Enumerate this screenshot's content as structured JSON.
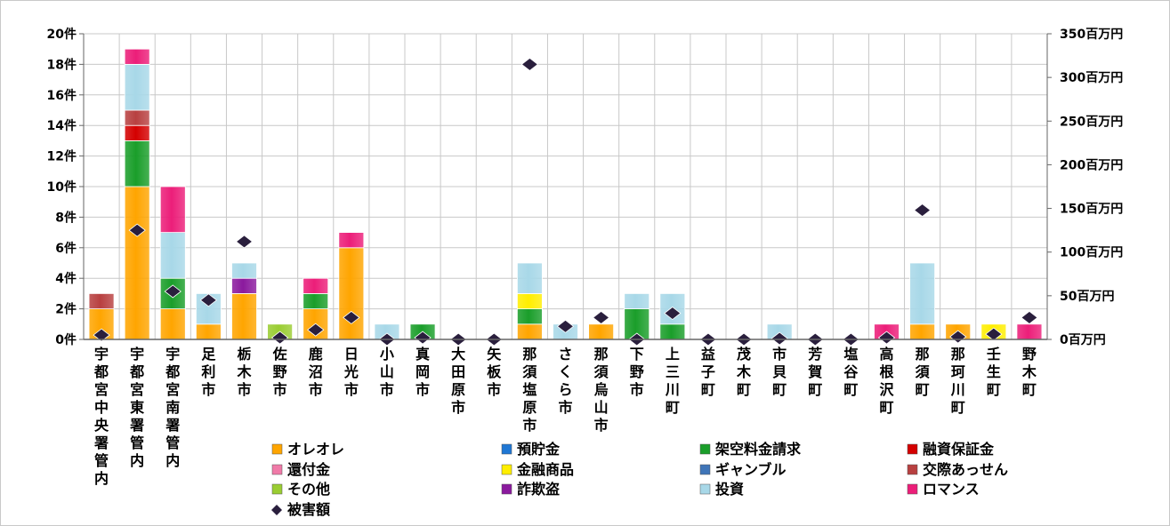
{
  "chart_data": {
    "type": "bar",
    "stacked": true,
    "categories": [
      "宇都宮中央署管内",
      "宇都宮東署管内",
      "宇都宮南署管内",
      "足利市",
      "栃木市",
      "佐野市",
      "鹿沼市",
      "日光市",
      "小山市",
      "真岡市",
      "大田原市",
      "矢板市",
      "那須塩原市",
      "さくら市",
      "那須烏山市",
      "下野市",
      "上三川町",
      "益子町",
      "茂木町",
      "市貝町",
      "芳賀町",
      "塩谷町",
      "高根沢町",
      "那須町",
      "那珂川町",
      "壬生町",
      "野木町"
    ],
    "y_ticks": [
      "0件",
      "2件",
      "4件",
      "6件",
      "8件",
      "10件",
      "12件",
      "14件",
      "16件",
      "18件",
      "20件"
    ],
    "y2_ticks": [
      "0百万円",
      "50百万円",
      "100百万円",
      "150百万円",
      "200百万円",
      "250百万円",
      "300百万円",
      "350百万円"
    ],
    "ylim": [
      0,
      20
    ],
    "y2lim": [
      0,
      350
    ],
    "legend_position": "bottom",
    "series": [
      {
        "name": "オレオレ",
        "color": "#ffa500",
        "values": [
          2,
          10,
          2,
          1,
          3,
          0,
          2,
          6,
          0,
          0,
          0,
          0,
          1,
          0,
          1,
          0,
          0,
          0,
          0,
          0,
          0,
          0,
          0,
          1,
          1,
          0,
          0
        ]
      },
      {
        "name": "預貯金",
        "color": "#1f77d4",
        "values": [
          0,
          0,
          0,
          0,
          0,
          0,
          0,
          0,
          0,
          0,
          0,
          0,
          0,
          0,
          0,
          0,
          0,
          0,
          0,
          0,
          0,
          0,
          0,
          0,
          0,
          0,
          0
        ]
      },
      {
        "name": "架空料金請求",
        "color": "#1a9e2a",
        "values": [
          0,
          3,
          2,
          0,
          0,
          0,
          1,
          0,
          0,
          1,
          0,
          0,
          1,
          0,
          0,
          2,
          1,
          0,
          0,
          0,
          0,
          0,
          0,
          0,
          0,
          0,
          0
        ]
      },
      {
        "name": "融資保証金",
        "color": "#d40000",
        "values": [
          0,
          1,
          0,
          0,
          0,
          0,
          0,
          0,
          0,
          0,
          0,
          0,
          0,
          0,
          0,
          0,
          0,
          0,
          0,
          0,
          0,
          0,
          0,
          0,
          0,
          0,
          0
        ]
      },
      {
        "name": "還付金",
        "color": "#f07aa8",
        "values": [
          0,
          0,
          0,
          0,
          0,
          0,
          0,
          0,
          0,
          0,
          0,
          0,
          0,
          0,
          0,
          0,
          0,
          0,
          0,
          0,
          0,
          0,
          0,
          0,
          0,
          0,
          0
        ]
      },
      {
        "name": "金融商品",
        "color": "#ffee00",
        "values": [
          0,
          0,
          0,
          0,
          0,
          0,
          0,
          0,
          0,
          0,
          0,
          0,
          1,
          0,
          0,
          0,
          0,
          0,
          0,
          0,
          0,
          0,
          0,
          0,
          0,
          1,
          0
        ]
      },
      {
        "name": "ギャンブル",
        "color": "#3f75b8",
        "values": [
          0,
          0,
          0,
          0,
          0,
          0,
          0,
          0,
          0,
          0,
          0,
          0,
          0,
          0,
          0,
          0,
          0,
          0,
          0,
          0,
          0,
          0,
          0,
          0,
          0,
          0,
          0
        ]
      },
      {
        "name": "交際あっせん",
        "color": "#b84040",
        "values": [
          1,
          1,
          0,
          0,
          0,
          0,
          0,
          0,
          0,
          0,
          0,
          0,
          0,
          0,
          0,
          0,
          0,
          0,
          0,
          0,
          0,
          0,
          0,
          0,
          0,
          0,
          0
        ]
      },
      {
        "name": "その他",
        "color": "#9acd32",
        "values": [
          0,
          0,
          0,
          0,
          0,
          1,
          0,
          0,
          0,
          0,
          0,
          0,
          0,
          0,
          0,
          0,
          0,
          0,
          0,
          0,
          0,
          0,
          0,
          0,
          0,
          0,
          0
        ]
      },
      {
        "name": "詐欺盗",
        "color": "#8b1a9e",
        "values": [
          0,
          0,
          0,
          0,
          1,
          0,
          0,
          0,
          0,
          0,
          0,
          0,
          0,
          0,
          0,
          0,
          0,
          0,
          0,
          0,
          0,
          0,
          0,
          0,
          0,
          0,
          0
        ]
      },
      {
        "name": "投資",
        "color": "#a8d8e8",
        "values": [
          0,
          3,
          3,
          2,
          1,
          0,
          0,
          0,
          1,
          0,
          0,
          0,
          2,
          1,
          0,
          1,
          2,
          0,
          0,
          1,
          0,
          0,
          0,
          4,
          0,
          0,
          0
        ]
      },
      {
        "name": "ロマンス",
        "color": "#ec1e79",
        "values": [
          0,
          1,
          3,
          0,
          0,
          0,
          1,
          1,
          0,
          0,
          0,
          0,
          0,
          0,
          0,
          0,
          0,
          0,
          0,
          0,
          0,
          0,
          1,
          0,
          0,
          0,
          1
        ]
      }
    ],
    "damage": {
      "name": "被害額",
      "axis": "right",
      "values": [
        5,
        125,
        55,
        45,
        112,
        2,
        11,
        25,
        0,
        2,
        0,
        0,
        315,
        15,
        25,
        0,
        30,
        0,
        0,
        1,
        0,
        0,
        2,
        148,
        3,
        6,
        25
      ]
    }
  }
}
